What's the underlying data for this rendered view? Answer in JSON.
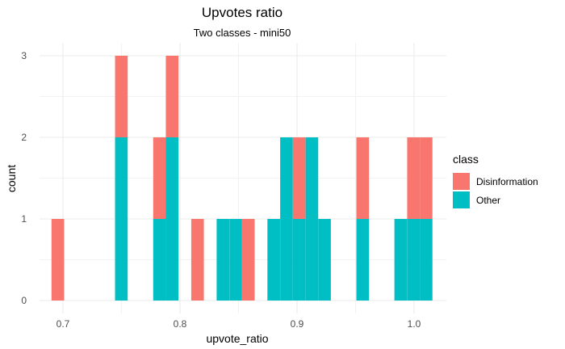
{
  "chart_data": {
    "type": "bar",
    "title": "Upvotes ratio",
    "subtitle": "Two classes - mini50",
    "xlabel": "upvote_ratio",
    "ylabel": "count",
    "xlim": [
      0.68,
      1.025
    ],
    "ylim": [
      0,
      3.15
    ],
    "x_ticks": [
      0.7,
      0.8,
      0.9,
      1.0
    ],
    "x_tick_labels": [
      "0.7",
      "0.8",
      "0.9",
      "1.0"
    ],
    "y_ticks": [
      0,
      1,
      2,
      3
    ],
    "y_tick_labels": [
      "0",
      "1",
      "2",
      "3"
    ],
    "bin_width": 0.0108,
    "stacked": true,
    "grid": true,
    "legend_position": "right",
    "legend_title": "class",
    "bin_centers": [
      0.6956,
      0.7499,
      0.7825,
      0.7933,
      0.815,
      0.8367,
      0.8476,
      0.8584,
      0.8801,
      0.891,
      0.9018,
      0.9127,
      0.9235,
      0.9561,
      0.9886,
      0.9995,
      1.0103
    ],
    "series": [
      {
        "name": "Other",
        "color": "#00BFC4",
        "values": [
          0,
          2,
          1,
          2,
          0,
          1,
          1,
          0,
          1,
          2,
          1,
          2,
          1,
          1,
          1,
          1,
          1
        ]
      },
      {
        "name": "Disinformation",
        "color": "#F8766D",
        "values": [
          1,
          1,
          1,
          1,
          1,
          0,
          0,
          1,
          0,
          0,
          1,
          0,
          0,
          1,
          0,
          1,
          1
        ]
      }
    ]
  }
}
